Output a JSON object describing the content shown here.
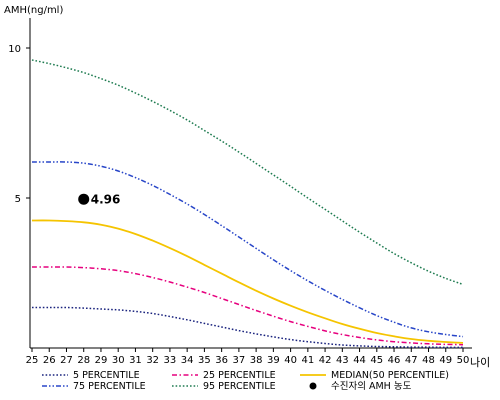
{
  "chart_data": {
    "type": "line",
    "ylabel": "AMH(ng/ml)",
    "xlabel": "나이",
    "xlim": [
      25,
      50
    ],
    "ylim": [
      0,
      11
    ],
    "x_ticks": [
      25,
      26,
      27,
      28,
      29,
      30,
      31,
      32,
      33,
      34,
      35,
      36,
      37,
      38,
      39,
      40,
      41,
      42,
      43,
      44,
      45,
      46,
      47,
      48,
      49,
      50
    ],
    "y_ticks": [
      5,
      10
    ],
    "legend_position": "bottom",
    "grid": false,
    "x": [
      25,
      26,
      27,
      28,
      29,
      30,
      31,
      32,
      33,
      34,
      35,
      36,
      37,
      38,
      39,
      40,
      41,
      42,
      43,
      44,
      45,
      46,
      47,
      48,
      49,
      50
    ],
    "series": [
      {
        "name": "5 PERCENTILE",
        "color": "#1a237e",
        "dash": "dotted",
        "values": [
          1.35,
          1.35,
          1.35,
          1.33,
          1.3,
          1.27,
          1.22,
          1.15,
          1.05,
          0.94,
          0.82,
          0.7,
          0.58,
          0.47,
          0.37,
          0.28,
          0.21,
          0.15,
          0.1,
          0.07,
          0.05,
          0.04,
          0.03,
          0.03,
          0.02,
          0.02
        ]
      },
      {
        "name": "25 PERCENTILE",
        "color": "#e6007e",
        "dash": "dashdot",
        "values": [
          2.7,
          2.7,
          2.7,
          2.68,
          2.64,
          2.58,
          2.48,
          2.35,
          2.2,
          2.03,
          1.85,
          1.65,
          1.45,
          1.25,
          1.06,
          0.88,
          0.72,
          0.57,
          0.45,
          0.35,
          0.27,
          0.21,
          0.17,
          0.14,
          0.12,
          0.11
        ]
      },
      {
        "name": "MEDIAN(50 PERCENTILE)",
        "color": "#f5c400",
        "dash": "solid",
        "values": [
          4.25,
          4.25,
          4.23,
          4.19,
          4.11,
          3.98,
          3.8,
          3.58,
          3.33,
          3.06,
          2.77,
          2.48,
          2.19,
          1.91,
          1.65,
          1.41,
          1.19,
          0.99,
          0.8,
          0.64,
          0.5,
          0.39,
          0.3,
          0.24,
          0.2,
          0.17
        ]
      },
      {
        "name": "75 PERCENTILE",
        "color": "#2846c8",
        "dash": "dashdotdot",
        "values": [
          6.2,
          6.2,
          6.2,
          6.16,
          6.06,
          5.9,
          5.68,
          5.42,
          5.12,
          4.8,
          4.45,
          4.08,
          3.7,
          3.32,
          2.94,
          2.58,
          2.24,
          1.92,
          1.62,
          1.34,
          1.08,
          0.86,
          0.67,
          0.54,
          0.45,
          0.38
        ]
      },
      {
        "name": "95 PERCENTILE",
        "color": "#1e7b50",
        "dash": "dotted",
        "values": [
          9.6,
          9.48,
          9.34,
          9.18,
          8.98,
          8.76,
          8.5,
          8.22,
          7.92,
          7.6,
          7.25,
          6.9,
          6.53,
          6.15,
          5.77,
          5.39,
          5.0,
          4.62,
          4.24,
          3.86,
          3.5,
          3.15,
          2.84,
          2.56,
          2.32,
          2.12
        ]
      }
    ],
    "patient_marker": {
      "legend_label": "수진자의 AMH 농도",
      "x": 28,
      "y": 4.96,
      "label": "4.96"
    }
  }
}
